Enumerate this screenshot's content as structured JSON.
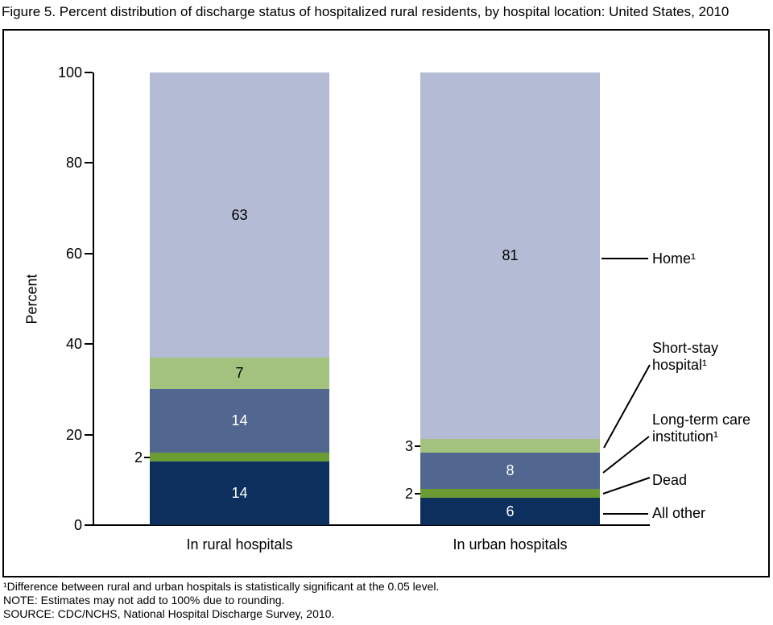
{
  "title": "Figure 5. Percent distribution of discharge status of hospitalized rural residents, by hospital location: United States, 2010",
  "chart_data": {
    "type": "bar",
    "subtype": "stacked-vertical",
    "categories": [
      "In rural hospitals",
      "In urban hospitals"
    ],
    "series": [
      {
        "name": "All other",
        "values": [
          14,
          6
        ],
        "color": "#0c2f5e",
        "label_color": "#ffffff"
      },
      {
        "name": "Dead",
        "values": [
          2,
          2
        ],
        "color": "#6a9c33",
        "label_color": "#000000"
      },
      {
        "name": "Long-term care institution",
        "values": [
          14,
          8
        ],
        "color": "#51678f",
        "label_color": "#ffffff"
      },
      {
        "name": "Short-stay hospital",
        "values": [
          7,
          3
        ],
        "color": "#a3c27d",
        "label_color": "#000000"
      },
      {
        "name": "Home",
        "values": [
          63,
          81
        ],
        "color": "#b4bbd4",
        "label_color": "#000000"
      }
    ],
    "ylabel": "Percent",
    "ylim": [
      0,
      100
    ],
    "yticks": [
      0,
      20,
      40,
      60,
      80,
      100
    ],
    "grid": false,
    "legend_position": "right-callouts"
  },
  "legend": {
    "entries": [
      {
        "lines": [
          "Home¹"
        ]
      },
      {
        "lines": [
          "Short-stay",
          "hospital¹"
        ]
      },
      {
        "lines": [
          "Long-term care",
          "institution¹"
        ]
      },
      {
        "lines": [
          "Dead"
        ]
      },
      {
        "lines": [
          "All other"
        ]
      }
    ]
  },
  "footnotes": [
    "¹Difference between rural and urban hospitals is statistically significant at the 0.05 level.",
    "NOTE: Estimates may not add to 100% due to rounding.",
    "SOURCE: CDC/NCHS, National Hospital Discharge Survey, 2010."
  ]
}
